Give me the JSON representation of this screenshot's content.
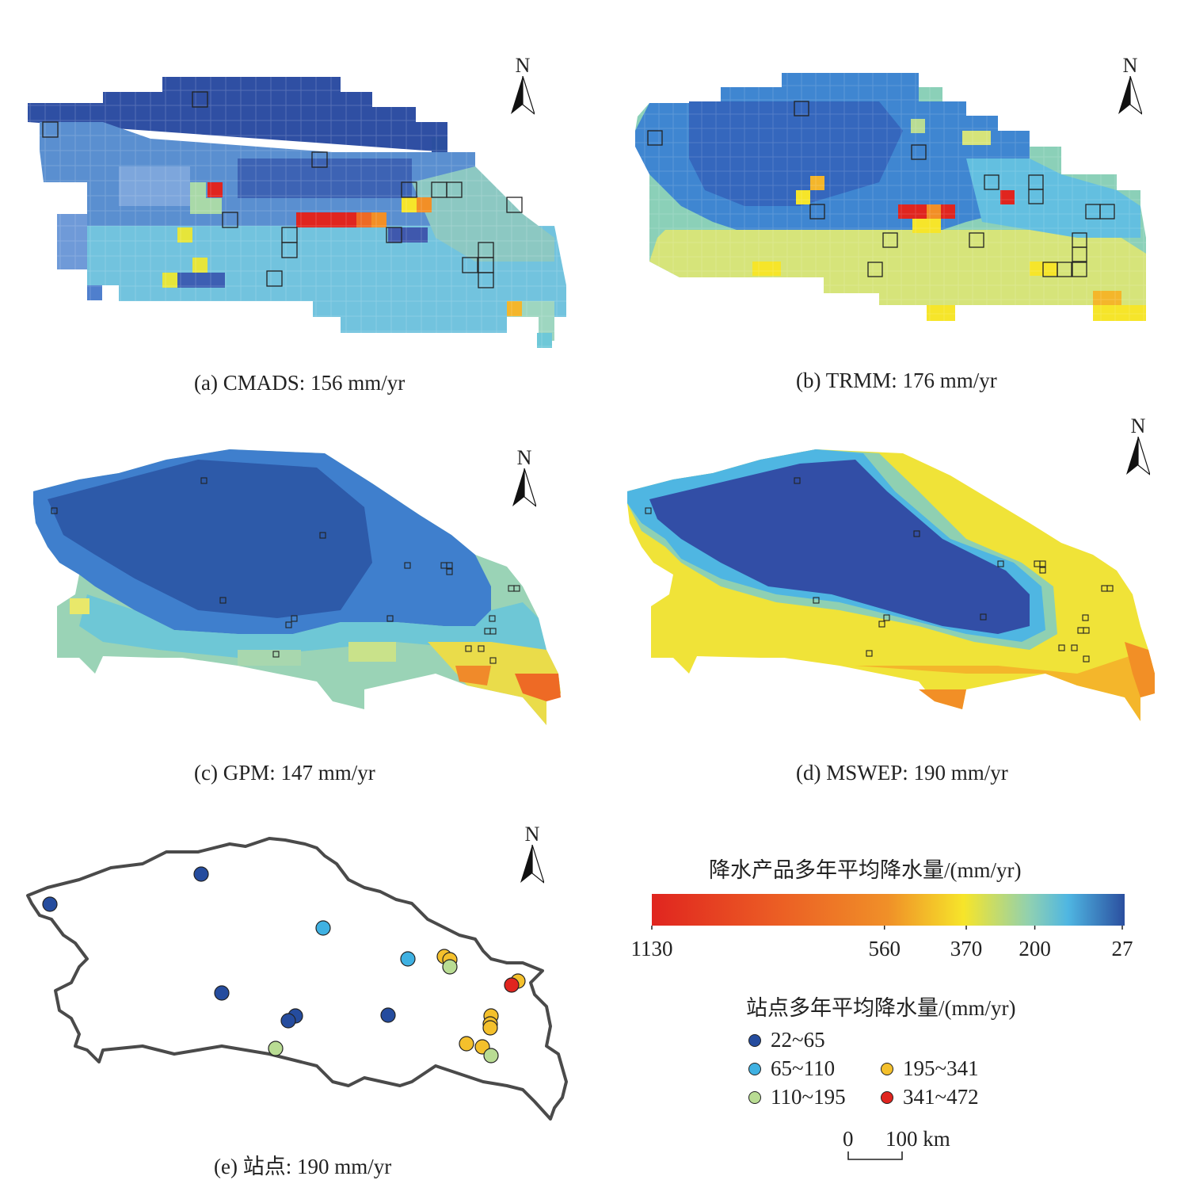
{
  "north_label": "N",
  "panels": [
    {
      "id": "a",
      "caption": "(a) CMADS: 156 mm/yr"
    },
    {
      "id": "b",
      "caption": "(b) TRMM: 176 mm/yr"
    },
    {
      "id": "c",
      "caption": "(c) GPM: 147 mm/yr"
    },
    {
      "id": "d",
      "caption": "(d) MSWEP: 190 mm/yr"
    },
    {
      "id": "e",
      "caption": "(e) 站点: 190 mm/yr"
    }
  ],
  "colorbar": {
    "title": "降水产品多年平均降水量/(mm/yr)",
    "ticks": [
      {
        "value": 1130,
        "label": "1130"
      },
      {
        "value": 560,
        "label": "560"
      },
      {
        "value": 370,
        "label": "370"
      },
      {
        "value": 200,
        "label": "200"
      },
      {
        "value": 27,
        "label": "27"
      }
    ],
    "colors": [
      "#e0251f",
      "#ee6a25",
      "#f4b62b",
      "#f6e52a",
      "#8fd0b2",
      "#4fb6e2",
      "#2b4f9f"
    ]
  },
  "stations_legend": {
    "title": "站点多年平均降水量/(mm/yr)",
    "classes": [
      {
        "label": "22~65",
        "color": "#254c9e"
      },
      {
        "label": "65~110",
        "color": "#3fb1e2"
      },
      {
        "label": "110~195",
        "color": "#b9dc93"
      },
      {
        "label": "195~341",
        "color": "#f4c02c"
      },
      {
        "label": "341~472",
        "color": "#e0251f"
      }
    ]
  },
  "scalebar": {
    "zero": "0",
    "distance": "100 km"
  }
}
